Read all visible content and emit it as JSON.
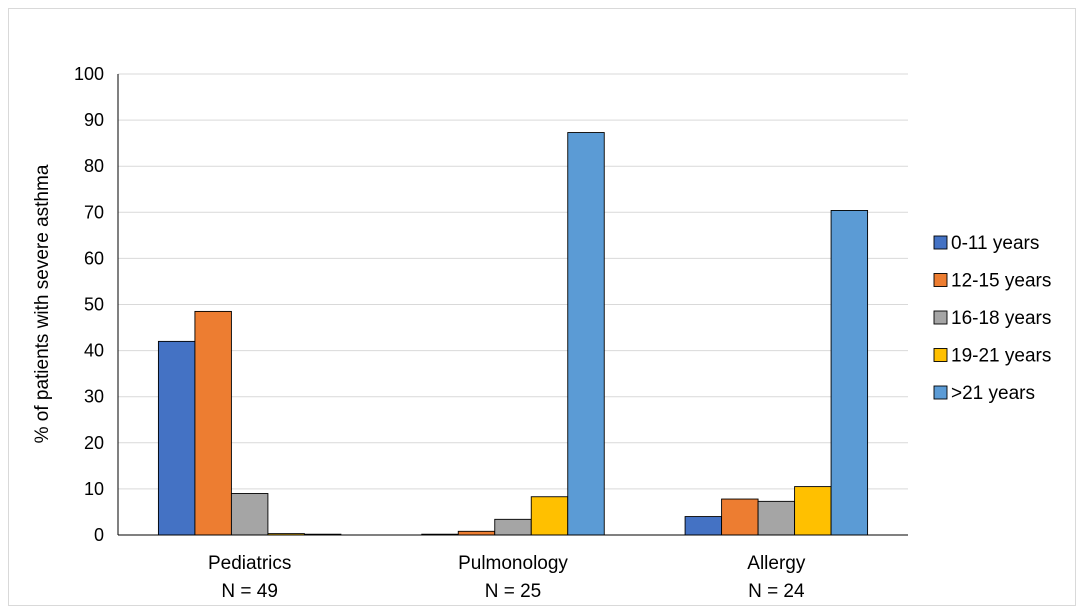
{
  "chart_data": {
    "type": "bar",
    "title": "",
    "ylabel": "% of patients with severe asthma",
    "ylim": [
      0,
      100
    ],
    "yticks": [
      0,
      10,
      20,
      30,
      40,
      50,
      60,
      70,
      80,
      90,
      100
    ],
    "grid": "horizontal",
    "legend_position": "right",
    "categories": [
      {
        "name": "Pediatrics",
        "n_label": "N = 49"
      },
      {
        "name": "Pulmonology",
        "n_label": "N = 25"
      },
      {
        "name": "Allergy",
        "n_label": "N = 24"
      }
    ],
    "series": [
      {
        "name": "0-11 years",
        "color": "#4472C4",
        "values": [
          42.0,
          0.0,
          4.0
        ]
      },
      {
        "name": "12-15 years",
        "color": "#ED7D31",
        "values": [
          48.5,
          0.8,
          7.8
        ]
      },
      {
        "name": "16-18 years",
        "color": "#A5A5A5",
        "values": [
          9.0,
          3.4,
          7.3
        ]
      },
      {
        "name": "19-21 years",
        "color": "#FFC000",
        "values": [
          0.3,
          8.3,
          10.5
        ]
      },
      {
        "name": ">21 years",
        "color": "#5B9BD5",
        "values": [
          0.0,
          87.3,
          70.4
        ]
      }
    ]
  }
}
